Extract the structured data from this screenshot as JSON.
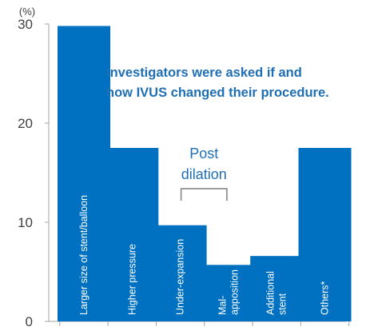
{
  "chart_data": {
    "type": "bar",
    "unit_label": "(%)",
    "categories": [
      [
        "Larger size of stent/balloon"
      ],
      [
        "Higher pressure"
      ],
      [
        "Under-expansion"
      ],
      [
        "Mal-",
        "apposition"
      ],
      [
        "Additional",
        "stent"
      ],
      [
        "Others*"
      ]
    ],
    "values": [
      29.8,
      17.5,
      9.7,
      5.7,
      6.6,
      17.5
    ],
    "ylim": [
      0,
      30
    ],
    "yticks": [
      "0",
      "10",
      "20",
      "30"
    ],
    "bar_color": "#0070c0",
    "annotation": [
      "Investigators were asked if and",
      "how IVUS changed their procedure."
    ],
    "group_bracket": {
      "label": [
        "Post",
        "dilation"
      ],
      "spans": [
        2,
        3
      ]
    }
  }
}
